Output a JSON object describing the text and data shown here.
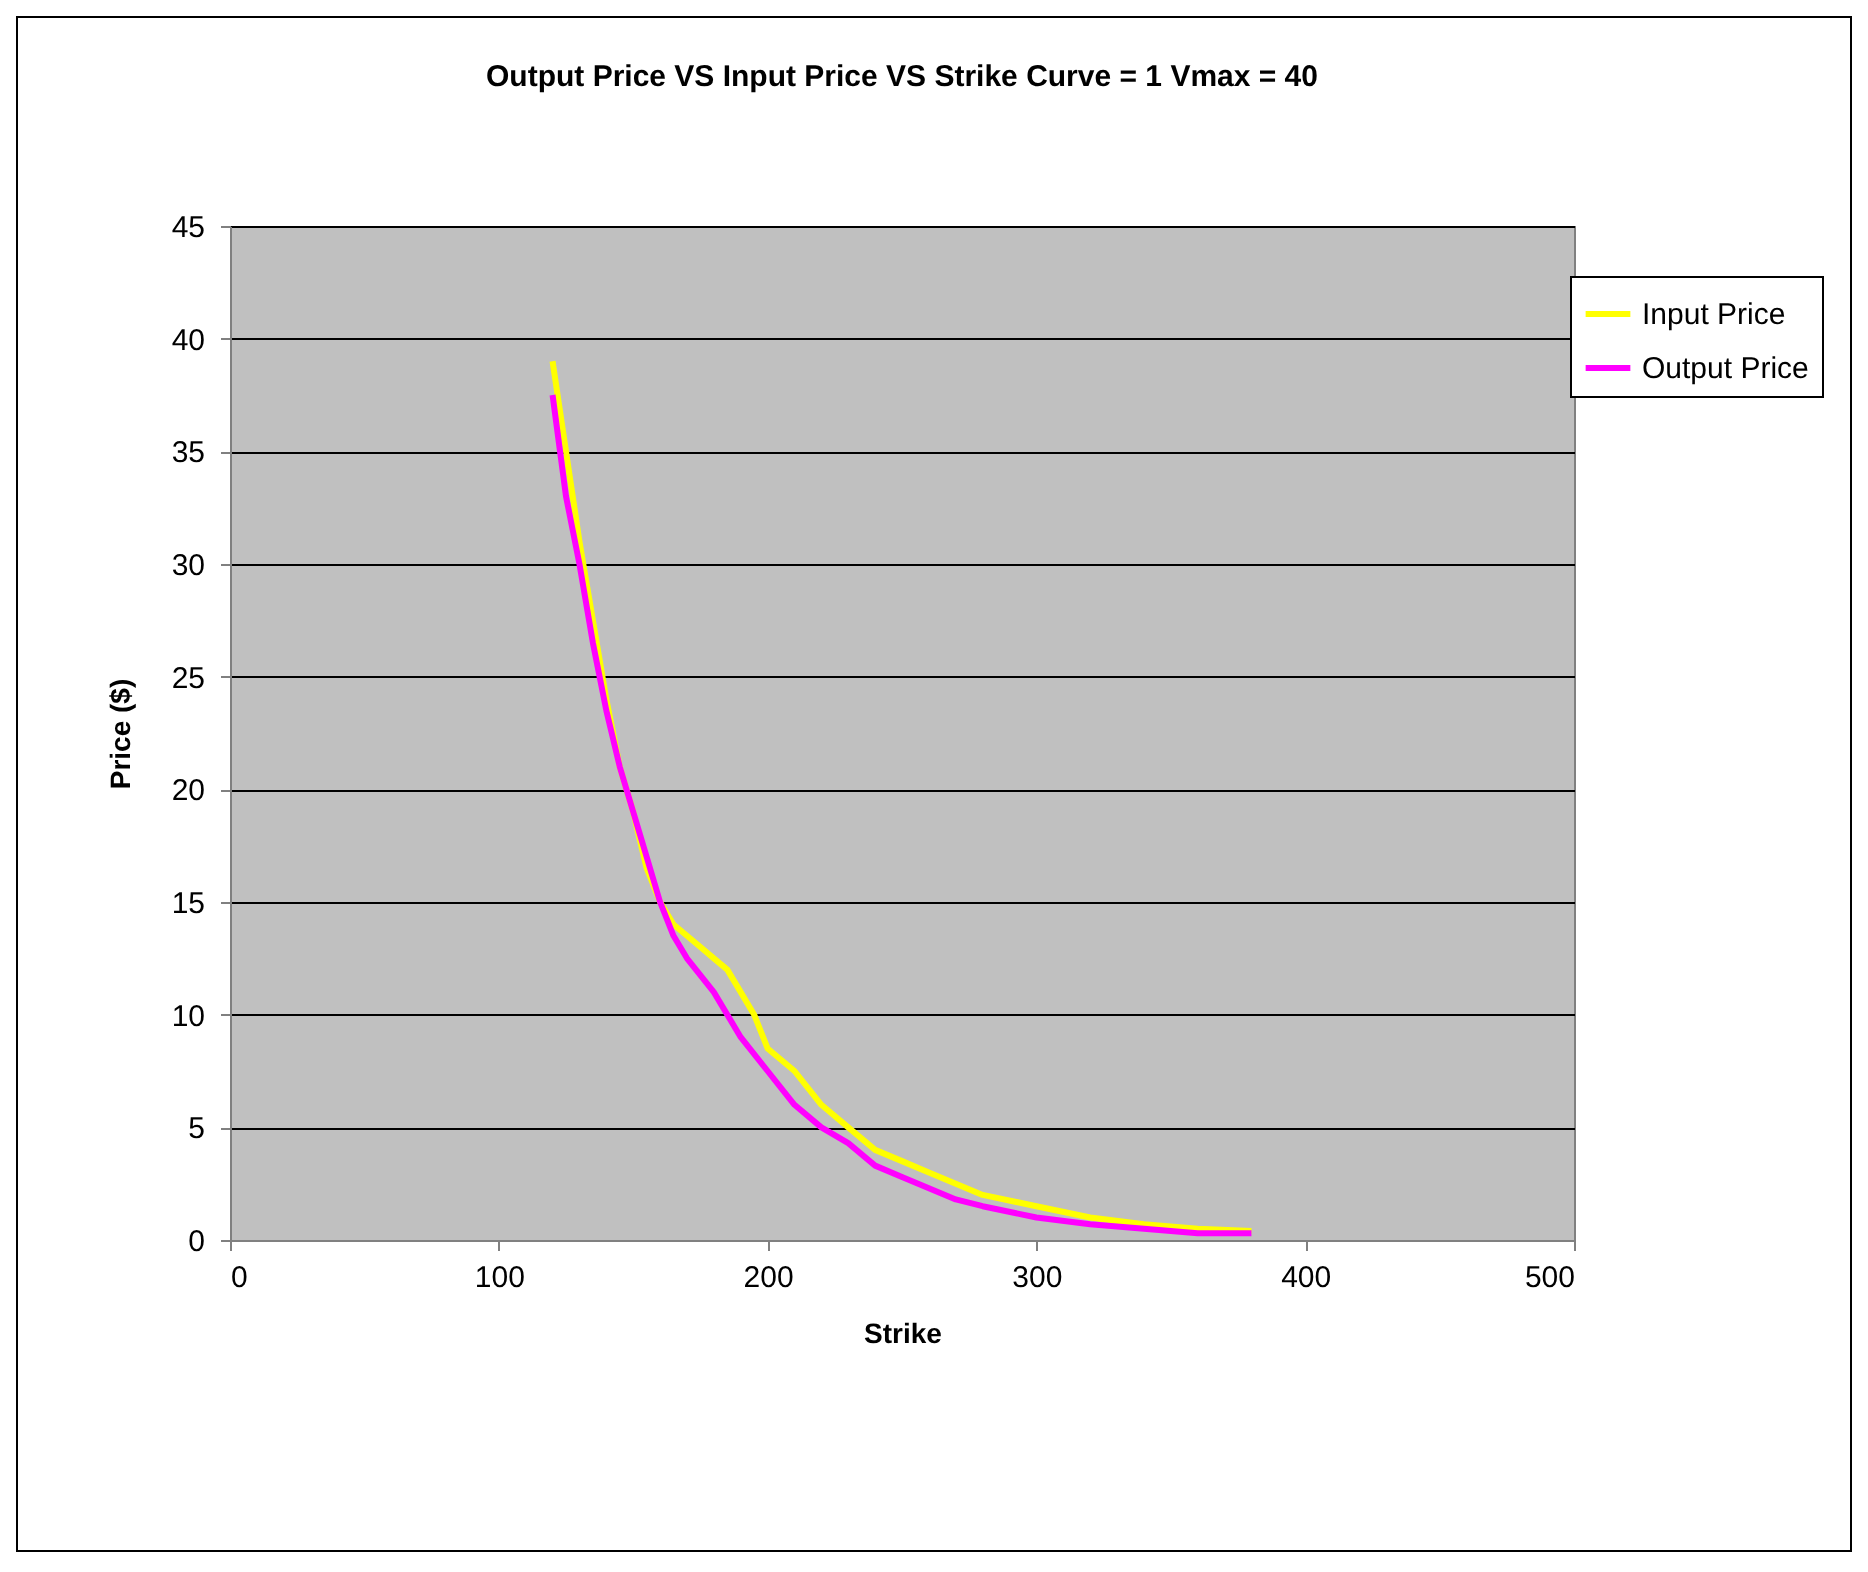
{
  "chart_data": {
    "type": "line",
    "title": "Output Price VS Input Price VS Strike Curve = 1 Vmax = 40",
    "xlabel": "Strike",
    "ylabel": "Price ($)",
    "xlim": [
      0,
      500
    ],
    "xticks": [
      0,
      100,
      200,
      300,
      400,
      500
    ],
    "ylim": [
      0,
      45
    ],
    "yticks": [
      0,
      5,
      10,
      15,
      20,
      25,
      30,
      35,
      40,
      45
    ],
    "grid": "y",
    "legend": "top right",
    "marker": "none",
    "line_style": "solid",
    "series": [
      {
        "name": "Input Price",
        "color": "#ffff00",
        "x": [
          120,
          125,
          130,
          135,
          140,
          145,
          150,
          155,
          160,
          165,
          170,
          175,
          180,
          185,
          190,
          195,
          200,
          210,
          220,
          230,
          240,
          250,
          260,
          270,
          280,
          300,
          320,
          340,
          360,
          380
        ],
        "values": [
          39,
          35,
          31,
          27.5,
          24,
          21,
          19,
          16.5,
          15,
          14,
          13.5,
          13,
          12.5,
          12,
          11,
          10,
          8.5,
          7.5,
          6,
          5,
          4,
          3.5,
          3,
          2.5,
          2,
          1.5,
          1,
          0.7,
          0.5,
          0.4
        ]
      },
      {
        "name": "Output Price",
        "color": "#ff00ff",
        "x": [
          120,
          125,
          130,
          135,
          140,
          145,
          150,
          155,
          160,
          165,
          170,
          180,
          190,
          200,
          210,
          220,
          230,
          240,
          250,
          260,
          270,
          280,
          300,
          320,
          340,
          360,
          380
        ],
        "values": [
          37.5,
          33,
          30,
          26.5,
          23.5,
          21,
          19,
          17,
          15,
          13.5,
          12.5,
          11,
          9,
          7.5,
          6,
          5,
          4.3,
          3.3,
          2.8,
          2.3,
          1.8,
          1.5,
          1,
          0.7,
          0.5,
          0.3,
          0.3
        ]
      }
    ]
  }
}
